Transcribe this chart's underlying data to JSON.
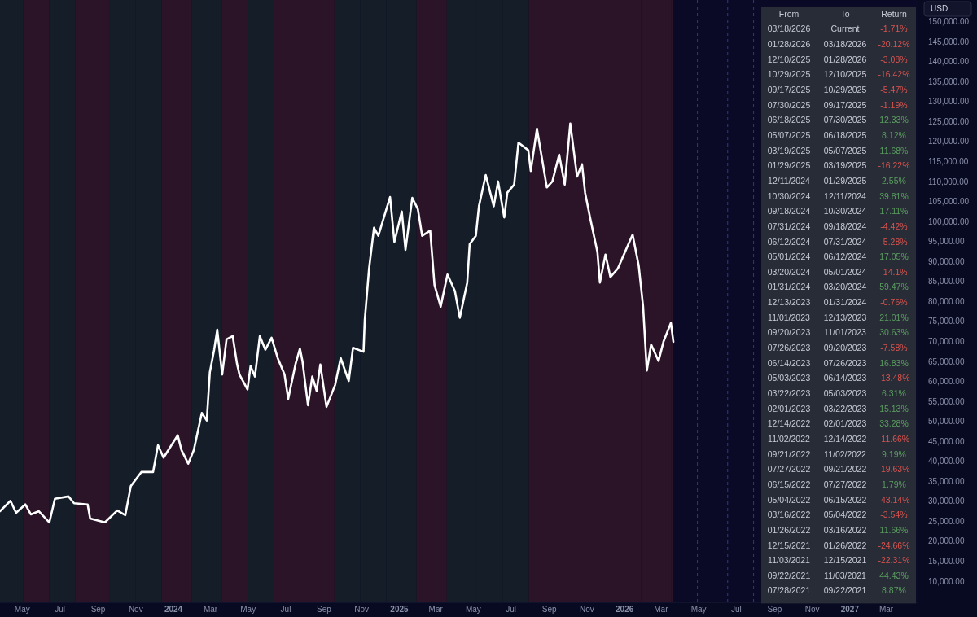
{
  "chart_data": [
    {
      "type": "line",
      "ylabel": "USD",
      "x": [
        "2023-03-26",
        "2023-04-12",
        "2023-04-21",
        "2023-05-06",
        "2023-05-15",
        "2023-05-28",
        "2023-06-14",
        "2023-06-23",
        "2023-07-15",
        "2023-07-24",
        "2023-08-15",
        "2023-08-19",
        "2023-09-12",
        "2023-10-02",
        "2023-10-15",
        "2023-10-24",
        "2023-11-10",
        "2023-11-29",
        "2023-12-07",
        "2023-12-16",
        "2024-01-08",
        "2024-01-14",
        "2024-01-25",
        "2024-02-03",
        "2024-02-16",
        "2024-02-24",
        "2024-02-29",
        "2024-03-07",
        "2024-03-12",
        "2024-03-20",
        "2024-03-27",
        "2024-04-06",
        "2024-04-13",
        "2024-04-17",
        "2024-04-30",
        "2024-05-05",
        "2024-05-12",
        "2024-05-20",
        "2024-05-29",
        "2024-06-08",
        "2024-06-18",
        "2024-06-29",
        "2024-07-05",
        "2024-07-17",
        "2024-07-24",
        "2024-07-28",
        "2024-08-06",
        "2024-08-13",
        "2024-08-20",
        "2024-08-26",
        "2024-09-05",
        "2024-09-19",
        "2024-09-28",
        "2024-10-11",
        "2024-10-18",
        "2024-11-04",
        "2024-11-06",
        "2024-11-13",
        "2024-11-21",
        "2024-11-28",
        "2024-12-17",
        "2024-12-24",
        "2025-01-05",
        "2025-01-11",
        "2025-01-22",
        "2025-01-31",
        "2025-02-07",
        "2025-02-20",
        "2025-02-27",
        "2025-03-09",
        "2025-03-20",
        "2025-04-01",
        "2025-04-09",
        "2025-04-21",
        "2025-04-25",
        "2025-05-05",
        "2025-05-10",
        "2025-05-21",
        "2025-06-03",
        "2025-06-10",
        "2025-06-20",
        "2025-06-25",
        "2025-07-06",
        "2025-07-13",
        "2025-07-29",
        "2025-08-02",
        "2025-08-12",
        "2025-08-28",
        "2025-09-06",
        "2025-09-17",
        "2025-09-26",
        "2025-10-05",
        "2025-10-16",
        "2025-10-24",
        "2025-10-29",
        "2025-11-06",
        "2025-11-18",
        "2025-11-22",
        "2025-12-01",
        "2025-12-09",
        "2025-12-21",
        "2026-01-04",
        "2026-01-14",
        "2026-01-24",
        "2026-01-31",
        "2026-02-06",
        "2026-02-13",
        "2026-02-25",
        "2026-03-05",
        "2026-03-17",
        "2026-03-21"
      ],
      "series": [
        {
          "color": "#ffffff",
          "values": [
            27700,
            30300,
            27300,
            29400,
            26900,
            27700,
            24900,
            30800,
            31400,
            29700,
            29400,
            25900,
            24900,
            27900,
            26700,
            34000,
            37500,
            37500,
            44200,
            41100,
            46700,
            43000,
            39600,
            43000,
            52300,
            50400,
            62500,
            68100,
            73100,
            61900,
            70700,
            71500,
            64600,
            61900,
            58200,
            64000,
            61400,
            71500,
            68100,
            71100,
            66000,
            61900,
            55800,
            64600,
            68400,
            65300,
            54200,
            61400,
            57800,
            64400,
            53800,
            59300,
            66000,
            60300,
            68600,
            67600,
            75500,
            88400,
            98600,
            96600,
            106300,
            95100,
            102700,
            93100,
            106100,
            103300,
            96600,
            97900,
            84300,
            78900,
            86900,
            82800,
            76100,
            84900,
            94500,
            96600,
            104000,
            111800,
            104000,
            110200,
            101200,
            107400,
            109400,
            119900,
            118000,
            112800,
            123400,
            108700,
            110200,
            116900,
            109400,
            124700,
            111400,
            114500,
            107400,
            101200,
            92500,
            84900,
            91900,
            86300,
            88400,
            93400,
            96900,
            89000,
            78900,
            62900,
            69400,
            65300,
            70100,
            74800,
            70100
          ]
        }
      ],
      "xlim": [
        "2023-03-26",
        "2027-04-22"
      ],
      "xticks": [
        {
          "value": "2023-05-01",
          "label": "May"
        },
        {
          "value": "2023-07-01",
          "label": "Jul"
        },
        {
          "value": "2023-09-01",
          "label": "Sep"
        },
        {
          "value": "2023-11-01",
          "label": "Nov"
        },
        {
          "value": "2024-01-01",
          "label": "2024"
        },
        {
          "value": "2024-03-01",
          "label": "Mar"
        },
        {
          "value": "2024-05-01",
          "label": "May"
        },
        {
          "value": "2024-07-01",
          "label": "Jul"
        },
        {
          "value": "2024-09-01",
          "label": "Sep"
        },
        {
          "value": "2024-11-01",
          "label": "Nov"
        },
        {
          "value": "2025-01-01",
          "label": "2025"
        },
        {
          "value": "2025-03-01",
          "label": "Mar"
        },
        {
          "value": "2025-05-01",
          "label": "May"
        },
        {
          "value": "2025-07-01",
          "label": "Jul"
        },
        {
          "value": "2025-09-01",
          "label": "Sep"
        },
        {
          "value": "2025-11-01",
          "label": "Nov"
        },
        {
          "value": "2026-01-01",
          "label": "2026"
        },
        {
          "value": "2026-03-01",
          "label": "Mar"
        },
        {
          "value": "2026-05-01",
          "label": "May"
        },
        {
          "value": "2026-07-01",
          "label": "Jul"
        },
        {
          "value": "2026-09-01",
          "label": "Sep"
        },
        {
          "value": "2026-11-01",
          "label": "Nov"
        },
        {
          "value": "2027-01-01",
          "label": "2027"
        },
        {
          "value": "2027-03-01",
          "label": "Mar"
        }
      ],
      "ylim": [
        4900,
        155600
      ],
      "yticks": [
        {
          "value": 10000,
          "label": "10,000.00"
        },
        {
          "value": 15000,
          "label": "15,000.00"
        },
        {
          "value": 20000,
          "label": "20,000.00"
        },
        {
          "value": 25000,
          "label": "25,000.00"
        },
        {
          "value": 30000,
          "label": "30,000.00"
        },
        {
          "value": 35000,
          "label": "35,000.00"
        },
        {
          "value": 40000,
          "label": "40,000.00"
        },
        {
          "value": 45000,
          "label": "45,000.00"
        },
        {
          "value": 50000,
          "label": "50,000.00"
        },
        {
          "value": 55000,
          "label": "55,000.00"
        },
        {
          "value": 60000,
          "label": "60,000.00"
        },
        {
          "value": 65000,
          "label": "65,000.00"
        },
        {
          "value": 70000,
          "label": "70,000.00"
        },
        {
          "value": 75000,
          "label": "75,000.00"
        },
        {
          "value": 80000,
          "label": "80,000.00"
        },
        {
          "value": 85000,
          "label": "85,000.00"
        },
        {
          "value": 90000,
          "label": "90,000.00"
        },
        {
          "value": 95000,
          "label": "95,000.00"
        },
        {
          "value": 100000,
          "label": "100,000.00"
        },
        {
          "value": 105000,
          "label": "105,000.00"
        },
        {
          "value": 110000,
          "label": "110,000.00"
        },
        {
          "value": 115000,
          "label": "115,000.00"
        },
        {
          "value": 120000,
          "label": "120,000.00"
        },
        {
          "value": 125000,
          "label": "125,000.00"
        },
        {
          "value": 130000,
          "label": "130,000.00"
        },
        {
          "value": 135000,
          "label": "135,000.00"
        },
        {
          "value": 140000,
          "label": "140,000.00"
        },
        {
          "value": 145000,
          "label": "145,000.00"
        },
        {
          "value": 150000,
          "label": "150,000.00"
        }
      ],
      "bands": [
        {
          "axis": "x",
          "from": "2023-03-26",
          "to": "2023-05-03",
          "color": "#141d28"
        },
        {
          "axis": "x",
          "from": "2023-05-03",
          "to": "2023-06-14",
          "color": "#2b1428"
        },
        {
          "axis": "x",
          "from": "2023-06-14",
          "to": "2023-07-26",
          "color": "#141d28"
        },
        {
          "axis": "x",
          "from": "2023-07-26",
          "to": "2023-09-20",
          "color": "#2b1428"
        },
        {
          "axis": "x",
          "from": "2023-09-20",
          "to": "2023-11-01",
          "color": "#141d28"
        },
        {
          "axis": "x",
          "from": "2023-11-01",
          "to": "2023-12-13",
          "color": "#141d28"
        },
        {
          "axis": "x",
          "from": "2023-12-13",
          "to": "2024-01-31",
          "color": "#2b1428"
        },
        {
          "axis": "x",
          "from": "2024-01-31",
          "to": "2024-03-20",
          "color": "#141d28"
        },
        {
          "axis": "x",
          "from": "2024-03-20",
          "to": "2024-05-01",
          "color": "#2b1428"
        },
        {
          "axis": "x",
          "from": "2024-05-01",
          "to": "2024-06-12",
          "color": "#141d28"
        },
        {
          "axis": "x",
          "from": "2024-06-12",
          "to": "2024-07-31",
          "color": "#2b1428"
        },
        {
          "axis": "x",
          "from": "2024-07-31",
          "to": "2024-09-18",
          "color": "#2b1428"
        },
        {
          "axis": "x",
          "from": "2024-09-18",
          "to": "2024-10-30",
          "color": "#141d28"
        },
        {
          "axis": "x",
          "from": "2024-10-30",
          "to": "2024-12-11",
          "color": "#141d28"
        },
        {
          "axis": "x",
          "from": "2024-12-11",
          "to": "2025-01-29",
          "color": "#141d28"
        },
        {
          "axis": "x",
          "from": "2025-01-29",
          "to": "2025-03-19",
          "color": "#2b1428"
        },
        {
          "axis": "x",
          "from": "2025-03-19",
          "to": "2025-05-07",
          "color": "#141d28"
        },
        {
          "axis": "x",
          "from": "2025-05-07",
          "to": "2025-06-18",
          "color": "#141d28"
        },
        {
          "axis": "x",
          "from": "2025-06-18",
          "to": "2025-07-30",
          "color": "#141d28"
        },
        {
          "axis": "x",
          "from": "2025-07-30",
          "to": "2025-09-17",
          "color": "#2b1428"
        },
        {
          "axis": "x",
          "from": "2025-09-17",
          "to": "2025-10-29",
          "color": "#2b1428"
        },
        {
          "axis": "x",
          "from": "2025-10-29",
          "to": "2025-12-10",
          "color": "#2b1428"
        },
        {
          "axis": "x",
          "from": "2025-12-10",
          "to": "2026-01-28",
          "color": "#2b1428"
        },
        {
          "axis": "x",
          "from": "2026-01-28",
          "to": "2026-03-18",
          "color": "#2b1428"
        },
        {
          "axis": "x",
          "from": "2026-03-18",
          "to": "2026-03-21",
          "color": "#2b1428"
        }
      ],
      "ref_lines": [
        {
          "axis": "x",
          "value": "2026-04-29",
          "color": "#2c3a8c",
          "line_style": "dashed"
        },
        {
          "axis": "x",
          "value": "2026-06-17",
          "color": "#2c3a8c",
          "line_style": "dashed"
        },
        {
          "axis": "x",
          "value": "2026-07-29",
          "color": "#2c3a8c",
          "line_style": "dashed"
        }
      ]
    },
    {
      "type": "other",
      "categories": [
        "From",
        "To",
        "Return"
      ],
      "cell_labels": [
        [
          "03/18/2026",
          "Current",
          "-1.71%"
        ],
        [
          "01/28/2026",
          "03/18/2026",
          "-20.12%"
        ],
        [
          "12/10/2025",
          "01/28/2026",
          "-3.08%"
        ],
        [
          "10/29/2025",
          "12/10/2025",
          "-16.42%"
        ],
        [
          "09/17/2025",
          "10/29/2025",
          "-5.47%"
        ],
        [
          "07/30/2025",
          "09/17/2025",
          "-1.19%"
        ],
        [
          "06/18/2025",
          "07/30/2025",
          "12.33%"
        ],
        [
          "05/07/2025",
          "06/18/2025",
          "8.12%"
        ],
        [
          "03/19/2025",
          "05/07/2025",
          "11.68%"
        ],
        [
          "01/29/2025",
          "03/19/2025",
          "-16.22%"
        ],
        [
          "12/11/2024",
          "01/29/2025",
          "2.55%"
        ],
        [
          "10/30/2024",
          "12/11/2024",
          "39.81%"
        ],
        [
          "09/18/2024",
          "10/30/2024",
          "17.11%"
        ],
        [
          "07/31/2024",
          "09/18/2024",
          "-4.42%"
        ],
        [
          "06/12/2024",
          "07/31/2024",
          "-5.28%"
        ],
        [
          "05/01/2024",
          "06/12/2024",
          "17.05%"
        ],
        [
          "03/20/2024",
          "05/01/2024",
          "-14.1%"
        ],
        [
          "01/31/2024",
          "03/20/2024",
          "59.47%"
        ],
        [
          "12/13/2023",
          "01/31/2024",
          "-0.76%"
        ],
        [
          "11/01/2023",
          "12/13/2023",
          "21.01%"
        ],
        [
          "09/20/2023",
          "11/01/2023",
          "30.63%"
        ],
        [
          "07/26/2023",
          "09/20/2023",
          "-7.58%"
        ],
        [
          "06/14/2023",
          "07/26/2023",
          "16.83%"
        ],
        [
          "05/03/2023",
          "06/14/2023",
          "-13.48%"
        ],
        [
          "03/22/2023",
          "05/03/2023",
          "6.31%"
        ],
        [
          "02/01/2023",
          "03/22/2023",
          "15.13%"
        ],
        [
          "12/14/2022",
          "02/01/2023",
          "33.28%"
        ],
        [
          "11/02/2022",
          "12/14/2022",
          "-11.66%"
        ],
        [
          "09/21/2022",
          "11/02/2022",
          "9.19%"
        ],
        [
          "07/27/2022",
          "09/21/2022",
          "-19.63%"
        ],
        [
          "06/15/2022",
          "07/27/2022",
          "1.79%"
        ],
        [
          "05/04/2022",
          "06/15/2022",
          "-43.14%"
        ],
        [
          "03/16/2022",
          "05/04/2022",
          "-3.54%"
        ],
        [
          "01/26/2022",
          "03/16/2022",
          "11.66%"
        ],
        [
          "12/15/2021",
          "01/26/2022",
          "-24.66%"
        ],
        [
          "11/03/2021",
          "12/15/2021",
          "-22.31%"
        ],
        [
          "09/22/2021",
          "11/03/2021",
          "44.43%"
        ],
        [
          "07/28/2021",
          "09/22/2021",
          "8.87%"
        ]
      ],
      "colors": [
        "#d9534f",
        "#d9534f",
        "#d9534f",
        "#d9534f",
        "#d9534f",
        "#d9534f",
        "#5a9e5f",
        "#5a9e5f",
        "#5a9e5f",
        "#d9534f",
        "#5a9e5f",
        "#5a9e5f",
        "#5a9e5f",
        "#d9534f",
        "#d9534f",
        "#5a9e5f",
        "#d9534f",
        "#5a9e5f",
        "#d9534f",
        "#5a9e5f",
        "#5a9e5f",
        "#d9534f",
        "#5a9e5f",
        "#d9534f",
        "#5a9e5f",
        "#5a9e5f",
        "#5a9e5f",
        "#d9534f",
        "#5a9e5f",
        "#d9534f",
        "#5a9e5f",
        "#d9534f",
        "#d9534f",
        "#5a9e5f",
        "#d9534f",
        "#d9534f",
        "#5a9e5f",
        "#5a9e5f"
      ]
    }
  ]
}
